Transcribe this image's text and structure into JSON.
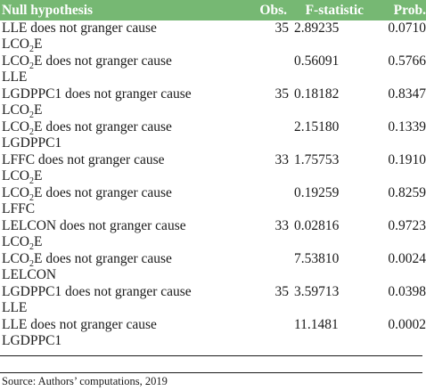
{
  "table": {
    "headers": {
      "hypothesis": "Null hypothesis",
      "obs": "Obs.",
      "fstat": "F-statistic",
      "prob": "Prob."
    },
    "rows": [
      {
        "l1_a": "LLE does not granger cause",
        "l1_sub": "",
        "l1_b": "",
        "l2_a": "LCO",
        "l2_sub": "2",
        "l2_b": "E",
        "obs": "35",
        "fstat": "2.89235",
        "prob": "0.0710"
      },
      {
        "l1_a": "LCO",
        "l1_sub": "2",
        "l1_b": "E does not granger cause",
        "l2_a": "LLE",
        "l2_sub": "",
        "l2_b": "",
        "obs": "",
        "fstat": "0.56091",
        "prob": "0.5766"
      },
      {
        "l1_a": "LGDPPC1 does not granger cause",
        "l1_sub": "",
        "l1_b": "",
        "l2_a": "LCO",
        "l2_sub": "2",
        "l2_b": "E",
        "obs": "35",
        "fstat": "0.18182",
        "prob": "0.8347"
      },
      {
        "l1_a": "LCO",
        "l1_sub": "2",
        "l1_b": "E does not granger cause",
        "l2_a": "LGDPPC1",
        "l2_sub": "",
        "l2_b": "",
        "obs": "",
        "fstat": "2.15180",
        "prob": "0.1339"
      },
      {
        "l1_a": "LFFC does not granger cause",
        "l1_sub": "",
        "l1_b": "",
        "l2_a": "LCO",
        "l2_sub": "2",
        "l2_b": "E",
        "obs": "33",
        "fstat": "1.75753",
        "prob": "0.1910"
      },
      {
        "l1_a": "LCO",
        "l1_sub": "2",
        "l1_b": "E does not granger cause",
        "l2_a": "LFFC",
        "l2_sub": "",
        "l2_b": "",
        "obs": "",
        "fstat": "0.19259",
        "prob": "0.8259"
      },
      {
        "l1_a": "LELCON does not granger cause",
        "l1_sub": "",
        "l1_b": "",
        "l2_a": "LCO",
        "l2_sub": "2",
        "l2_b": "E",
        "obs": "33",
        "fstat": "0.02816",
        "prob": "0.9723"
      },
      {
        "l1_a": "LCO",
        "l1_sub": "2",
        "l1_b": "E does not granger cause",
        "l2_a": "LELCON",
        "l2_sub": "",
        "l2_b": "",
        "obs": "",
        "fstat": "7.53810",
        "prob": "0.0024"
      },
      {
        "l1_a": "LGDPPC1 does not granger cause",
        "l1_sub": "",
        "l1_b": "",
        "l2_a": "LLE",
        "l2_sub": "",
        "l2_b": "",
        "obs": "35",
        "fstat": "3.59713",
        "prob": "0.0398"
      },
      {
        "l1_a": "LLE does not granger cause",
        "l1_sub": "",
        "l1_b": "",
        "l2_a": "LGDPPC1",
        "l2_sub": "",
        "l2_b": "",
        "obs": "",
        "fstat": "11.1481",
        "prob": "0.0002"
      }
    ]
  },
  "source": "Source: Authors’ computations, 2019",
  "colors": {
    "header_bg": "#76b873",
    "header_text": "#ffffff",
    "body_text": "#1a1a1a"
  }
}
